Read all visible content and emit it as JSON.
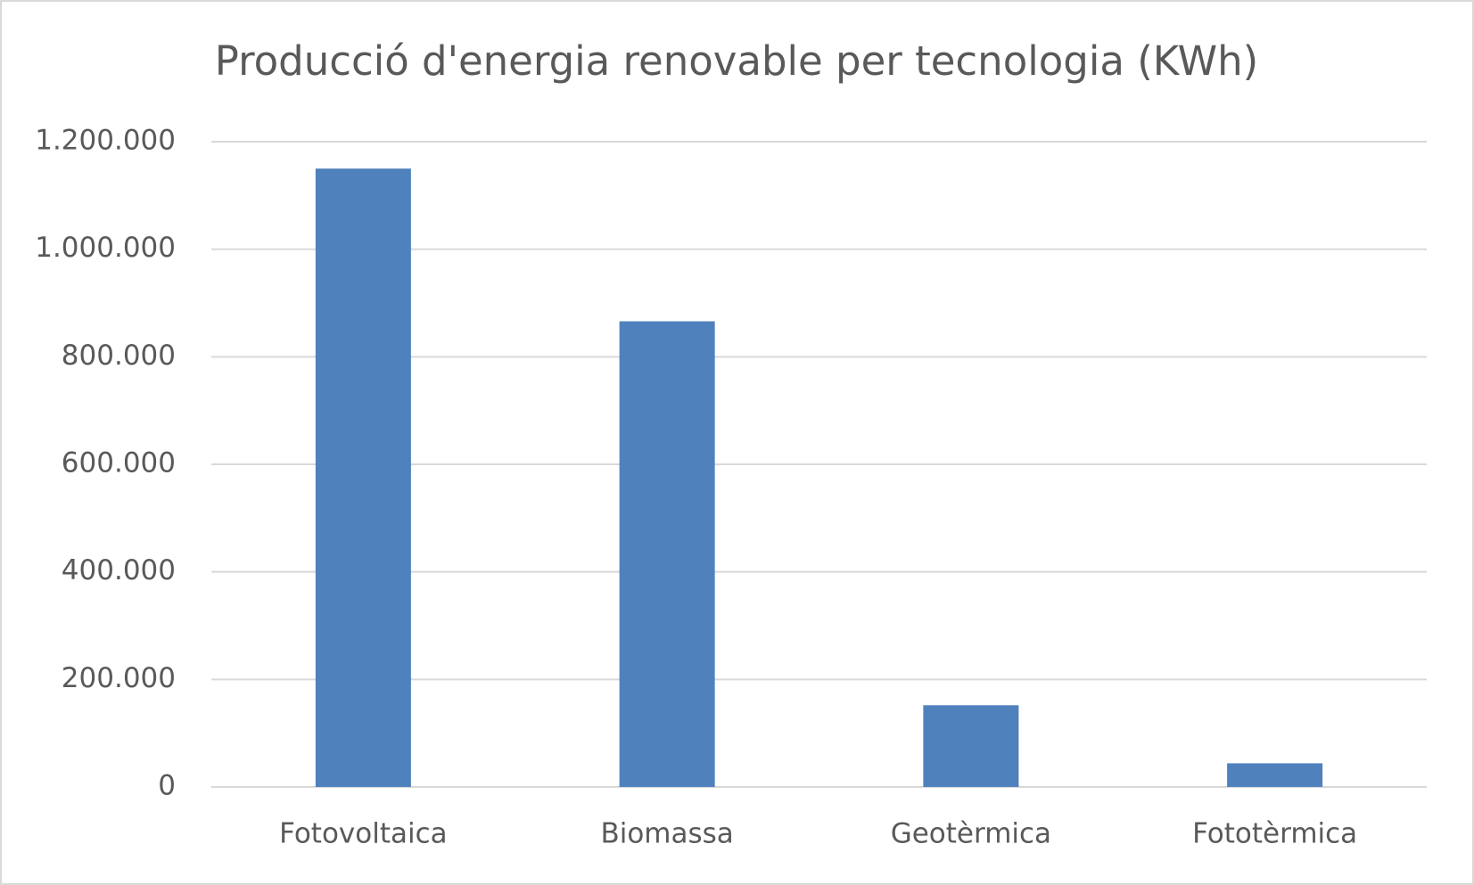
{
  "chart_data": {
    "type": "bar",
    "title": "Producció d'energia renovable per tecnologia (KWh)",
    "categories": [
      "Fotovoltaica",
      "Biomassa",
      "Geotèrmica",
      "Fototèrmica"
    ],
    "values": [
      1150000,
      866000,
      152000,
      44000
    ],
    "color": "#4f81bd",
    "ylim": [
      0,
      1200000
    ],
    "yticks": [
      0,
      {
        "value": 200000,
        "label": "200.000"
      },
      {
        "value": 400000,
        "label": "400.000"
      },
      {
        "value": 600000,
        "label": "600.000"
      },
      {
        "value": 800000,
        "label": "800.000"
      },
      {
        "value": 1000000,
        "label": "1.000.000"
      },
      {
        "value": 1200000,
        "label": "1.200.000"
      }
    ],
    "grid": true
  }
}
